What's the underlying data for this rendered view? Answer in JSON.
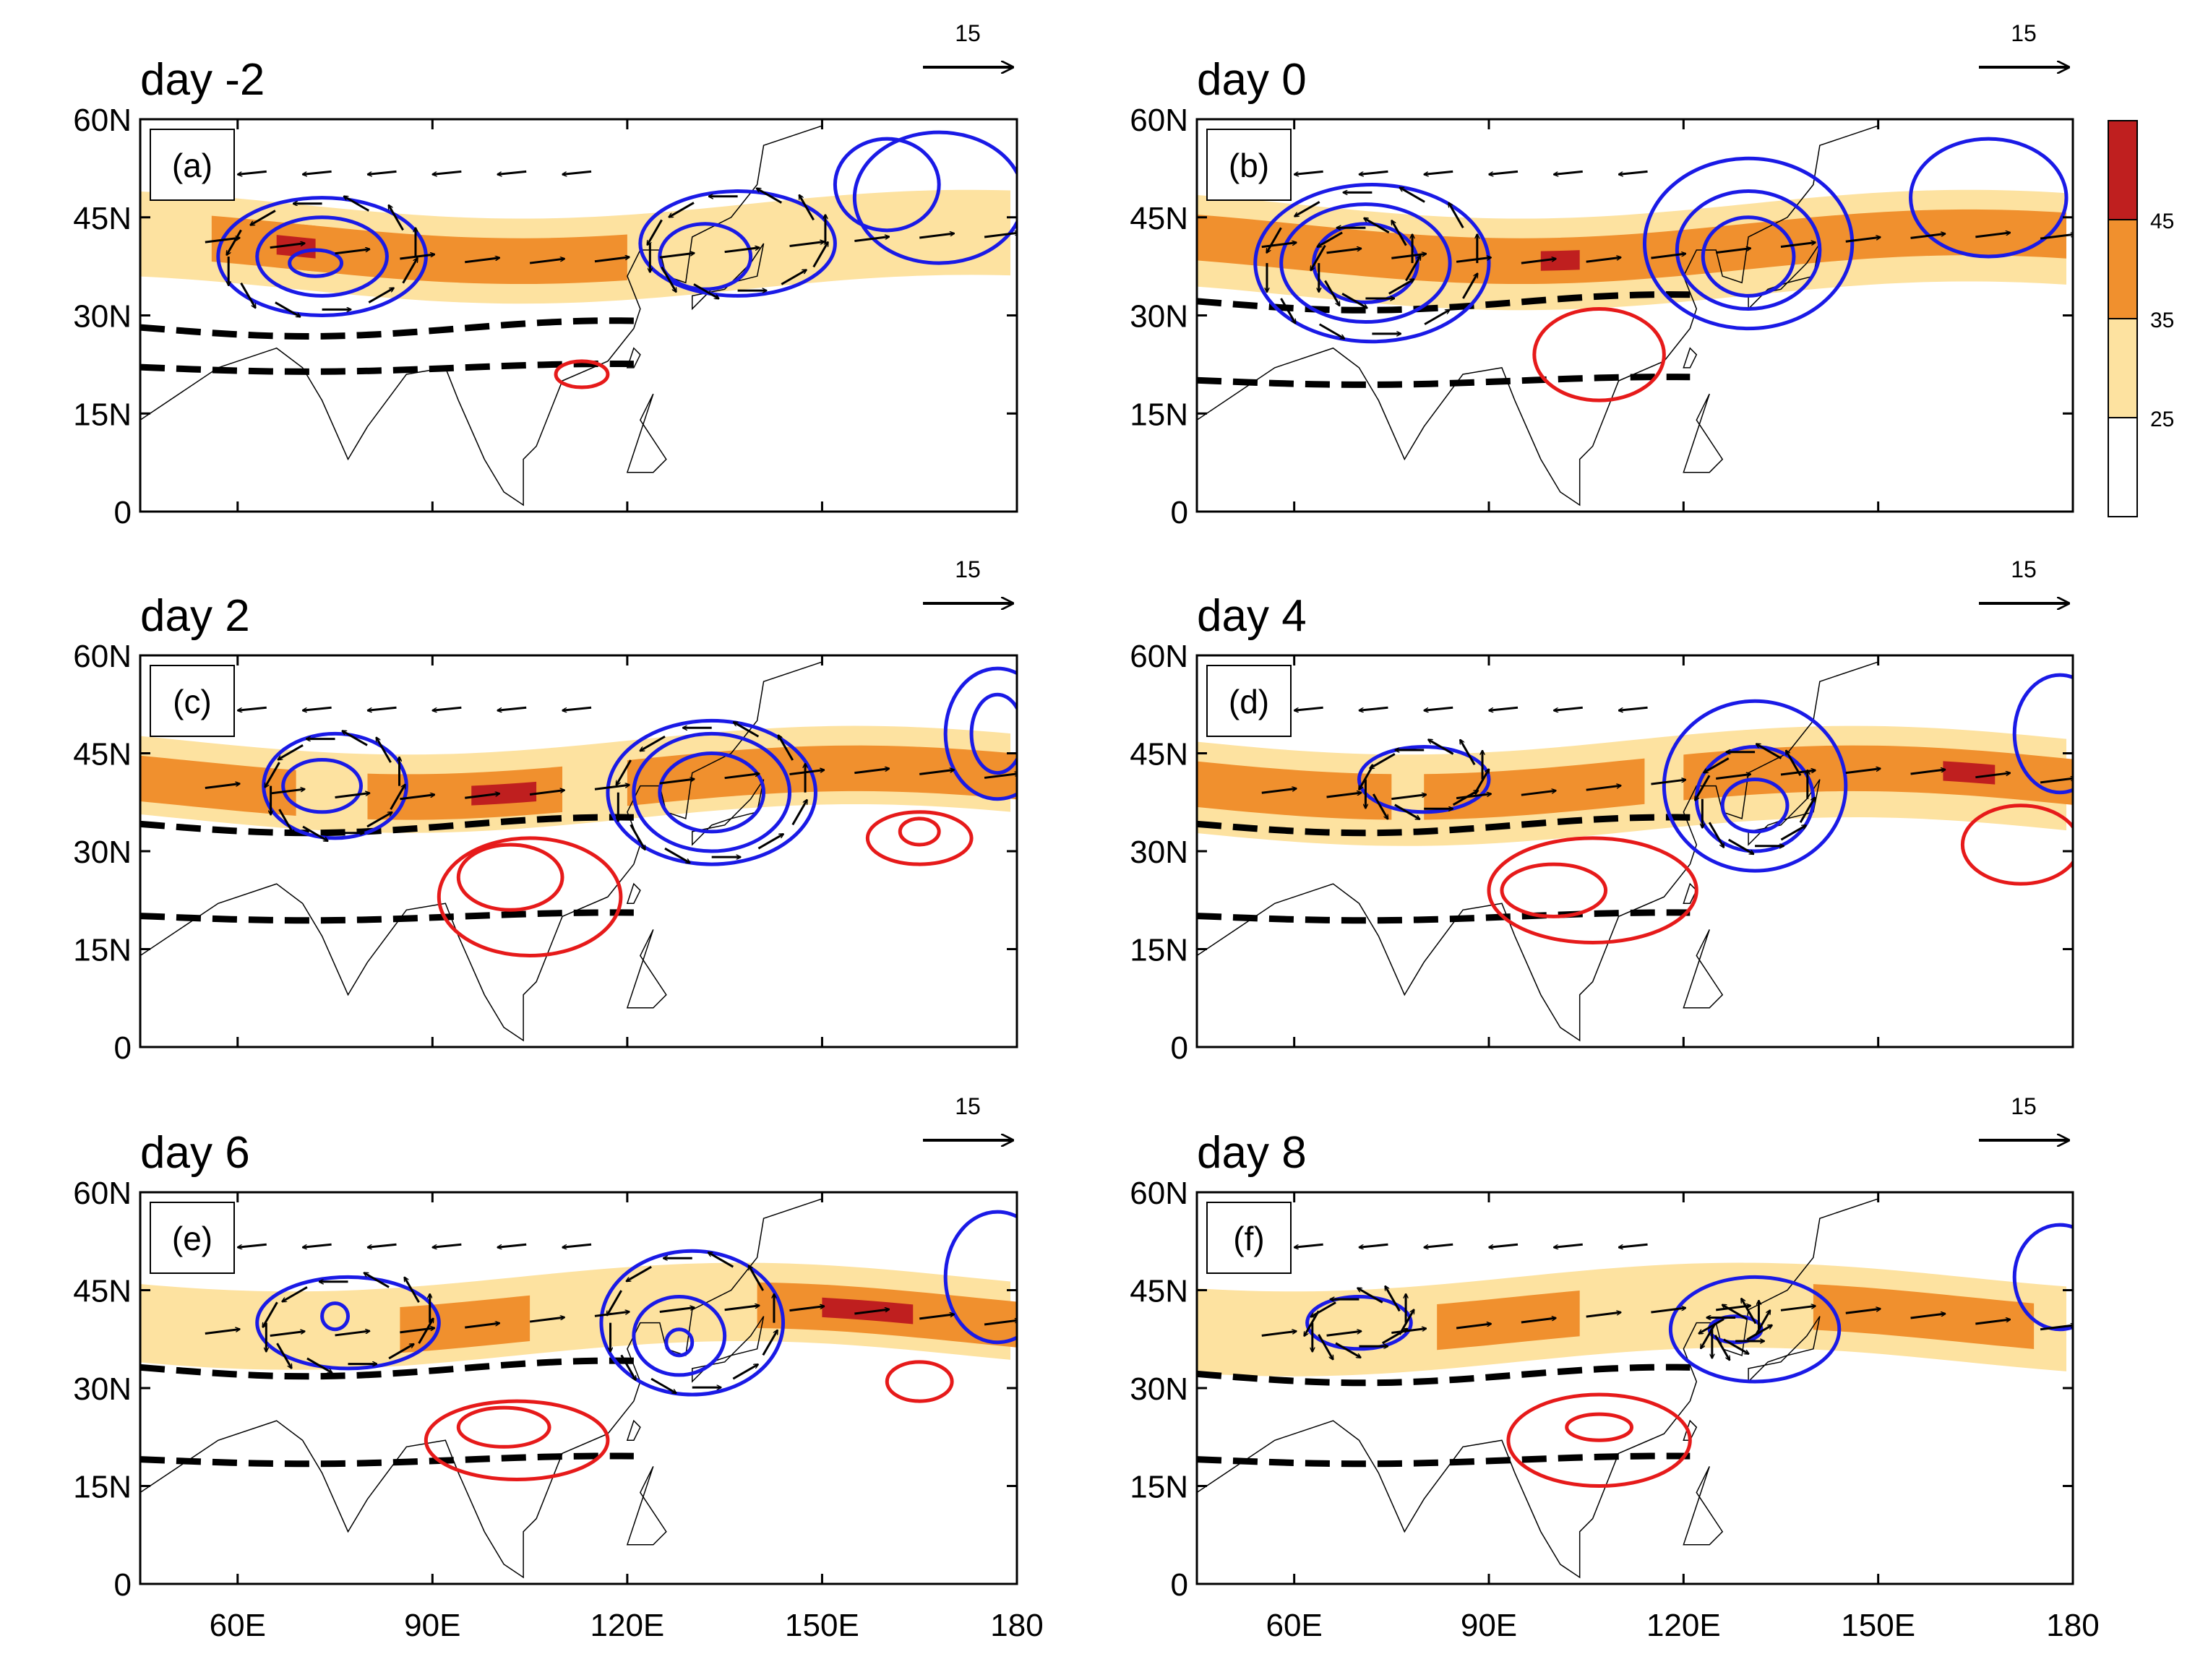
{
  "panels": [
    {
      "day_label": "day -2",
      "letter": "(a)"
    },
    {
      "day_label": "day 0",
      "letter": "(b)"
    },
    {
      "day_label": "day 2",
      "letter": "(c)"
    },
    {
      "day_label": "day 4",
      "letter": "(d)"
    },
    {
      "day_label": "day 6",
      "letter": "(e)"
    },
    {
      "day_label": "day 8",
      "letter": "(f)"
    }
  ],
  "reference_vector": {
    "value": "15"
  },
  "axes": {
    "lat_ticks": [
      "60N",
      "45N",
      "30N",
      "15N",
      "0"
    ],
    "lon_ticks": [
      "60E",
      "90E",
      "120E",
      "150E",
      "180"
    ]
  },
  "colorbar": {
    "labels": [
      "45",
      "35",
      "25"
    ]
  },
  "colors": {
    "shade_light": "#fde2a0",
    "shade_mid": "#f0902e",
    "shade_dark": "#bf1f1f",
    "contour_blue": "#1a1ae6",
    "contour_red": "#e61a1a",
    "dashed": "#000000"
  }
}
